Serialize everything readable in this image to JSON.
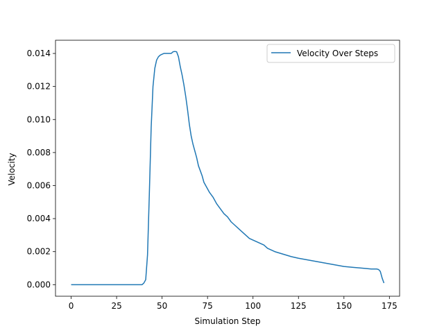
{
  "chart_data": {
    "type": "line",
    "title": "",
    "xlabel": "Simulation Step",
    "ylabel": "Velocity",
    "xlim": [
      -8.6,
      180.6
    ],
    "ylim": [
      -0.0007,
      0.0148
    ],
    "xticks": [
      0,
      25,
      50,
      75,
      100,
      125,
      150,
      175
    ],
    "yticks": [
      0.0,
      0.002,
      0.004,
      0.006,
      0.008,
      0.01,
      0.012,
      0.014
    ],
    "ytick_labels": [
      "0.000",
      "0.002",
      "0.004",
      "0.006",
      "0.008",
      "0.010",
      "0.012",
      "0.014"
    ],
    "grid": false,
    "legend_position": "top-right",
    "series": [
      {
        "name": "Velocity Over Steps",
        "color": "#1f77b4",
        "x": [
          0,
          10,
          20,
          30,
          39,
          40,
          41,
          42,
          43,
          44,
          45,
          46,
          47,
          48,
          49,
          50,
          51,
          52,
          53,
          54,
          55,
          56,
          57,
          58,
          59,
          60,
          61,
          62,
          63,
          64,
          65,
          66,
          67,
          68,
          69,
          70,
          71,
          72,
          73,
          74,
          75,
          76,
          78,
          80,
          82,
          84,
          86,
          88,
          90,
          92,
          94,
          96,
          98,
          100,
          102,
          104,
          106,
          108,
          110,
          112,
          115,
          118,
          121,
          125,
          130,
          135,
          140,
          145,
          150,
          155,
          160,
          165,
          168,
          169,
          170,
          171,
          172
        ],
        "y": [
          0,
          0,
          0,
          0,
          0,
          0.0001,
          0.0003,
          0.0018,
          0.0055,
          0.0095,
          0.012,
          0.0131,
          0.0136,
          0.0138,
          0.0139,
          0.01395,
          0.014,
          0.014,
          0.014,
          0.014,
          0.014,
          0.0141,
          0.01412,
          0.0141,
          0.0138,
          0.0132,
          0.0127,
          0.0121,
          0.0114,
          0.0106,
          0.0097,
          0.009,
          0.0085,
          0.0081,
          0.0077,
          0.0072,
          0.0069,
          0.0066,
          0.0062,
          0.006,
          0.0058,
          0.0056,
          0.0053,
          0.0049,
          0.0046,
          0.0043,
          0.0041,
          0.0038,
          0.0036,
          0.0034,
          0.0032,
          0.003,
          0.0028,
          0.0027,
          0.0026,
          0.0025,
          0.0024,
          0.0022,
          0.0021,
          0.002,
          0.0019,
          0.0018,
          0.0017,
          0.0016,
          0.0015,
          0.0014,
          0.0013,
          0.0012,
          0.0011,
          0.00105,
          0.001,
          0.00095,
          0.00095,
          0.00092,
          0.0008,
          0.0004,
          0.0001
        ]
      }
    ]
  }
}
